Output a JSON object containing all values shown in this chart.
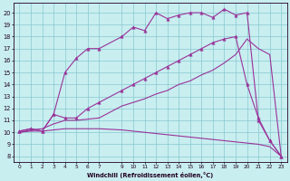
{
  "xlabel": "Windchill (Refroidissement éolien,°C)",
  "bg_color": "#c8eef0",
  "grid_color": "#88c8d0",
  "line_color": "#993399",
  "xlim": [
    -0.5,
    23.5
  ],
  "ylim": [
    7.5,
    20.8
  ],
  "xticks": [
    0,
    1,
    2,
    3,
    4,
    5,
    6,
    7,
    9,
    10,
    11,
    12,
    13,
    14,
    15,
    16,
    17,
    18,
    19,
    20,
    21,
    22,
    23
  ],
  "yticks": [
    8,
    9,
    10,
    11,
    12,
    13,
    14,
    15,
    16,
    17,
    18,
    19,
    20
  ],
  "line1_x": [
    0,
    1,
    2,
    3,
    4,
    5,
    6,
    7,
    9,
    10,
    11,
    12,
    13,
    14,
    15,
    16,
    17,
    18,
    19,
    20,
    21,
    22,
    23
  ],
  "line1_y": [
    10.1,
    10.3,
    10.1,
    11.5,
    15.0,
    16.2,
    17.0,
    17.0,
    18.0,
    18.8,
    18.5,
    20.0,
    19.5,
    19.8,
    20.0,
    20.0,
    19.6,
    20.3,
    19.8,
    20.0,
    11.0,
    9.3,
    8.0
  ],
  "line2_x": [
    0,
    1,
    2,
    3,
    4,
    5,
    6,
    7,
    9,
    10,
    11,
    12,
    13,
    14,
    15,
    16,
    17,
    18,
    19,
    20,
    21,
    22,
    23
  ],
  "line2_y": [
    10.1,
    10.3,
    10.1,
    11.5,
    11.2,
    11.2,
    12.0,
    12.5,
    13.5,
    14.0,
    14.5,
    15.0,
    15.5,
    16.0,
    16.5,
    17.0,
    17.5,
    17.8,
    18.0,
    14.0,
    11.2,
    9.3,
    8.0
  ],
  "line3_x": [
    0,
    1,
    2,
    3,
    4,
    5,
    6,
    7,
    9,
    10,
    11,
    12,
    13,
    14,
    15,
    16,
    17,
    18,
    19,
    20,
    21,
    22,
    23
  ],
  "line3_y": [
    10.0,
    10.2,
    10.3,
    10.7,
    11.0,
    11.0,
    11.1,
    11.2,
    12.2,
    12.5,
    12.8,
    13.2,
    13.5,
    14.0,
    14.3,
    14.8,
    15.2,
    15.8,
    16.5,
    17.8,
    17.0,
    16.5,
    8.0
  ],
  "line4_x": [
    0,
    1,
    2,
    3,
    4,
    5,
    6,
    7,
    9,
    10,
    11,
    12,
    13,
    14,
    15,
    16,
    17,
    18,
    19,
    20,
    21,
    22,
    23
  ],
  "line4_y": [
    10.0,
    10.1,
    10.1,
    10.2,
    10.3,
    10.3,
    10.3,
    10.3,
    10.2,
    10.1,
    10.0,
    9.9,
    9.8,
    9.7,
    9.6,
    9.5,
    9.4,
    9.3,
    9.2,
    9.1,
    9.0,
    8.8,
    8.0
  ]
}
